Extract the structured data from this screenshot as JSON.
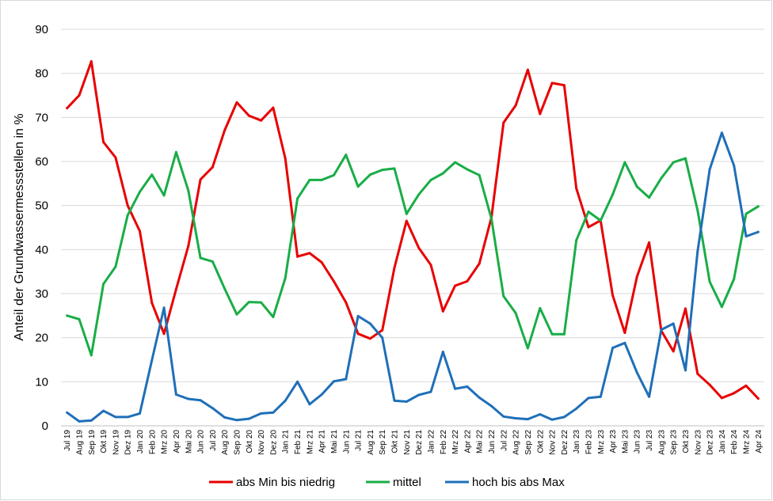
{
  "chart_data": {
    "type": "line",
    "title": "",
    "xlabel": "",
    "ylabel": "Anteil der Grundwassermessstellen  in %",
    "ylim": [
      0,
      90
    ],
    "yticks": [
      0,
      10,
      20,
      30,
      40,
      50,
      60,
      70,
      80,
      90
    ],
    "grid": true,
    "legend_position": "bottom",
    "categories": [
      "Jul 19",
      "Aug 19",
      "Sep 19",
      "Okt 19",
      "Nov 19",
      "Dez 19",
      "Jan 20",
      "Feb 20",
      "Mrz 20",
      "Apr 20",
      "Mai 20",
      "Jun 20",
      "Jul 20",
      "Aug 20",
      "Sep 20",
      "Okt 20",
      "Nov 20",
      "Dez 20",
      "Jan 21",
      "Feb 21",
      "Mrz 21",
      "Apr 21",
      "Mai 21",
      "Jun 21",
      "Jul 21",
      "Aug 21",
      "Sep 21",
      "Okt 21",
      "Nov 21",
      "Dez 21",
      "Jan 22",
      "Feb 22",
      "Mrz 22",
      "Apr 22",
      "Mai 22",
      "Jun 22",
      "Jul 22",
      "Aug 22",
      "Sep 22",
      "Okt 22",
      "Nov 22",
      "Dez 22",
      "Jan 23",
      "Feb 23",
      "Mrz 23",
      "Apr 23",
      "Mai 23",
      "Jun 23",
      "Jul 23",
      "Aug 23",
      "Sep 23",
      "Okt 23",
      "Nov 23",
      "Dez 23",
      "Jan 24",
      "Feb 24",
      "Mrz 24",
      "Apr 24"
    ],
    "series": [
      {
        "name": "abs Min bis niedrig",
        "color": "#e80000",
        "values": [
          72.1,
          75.0,
          82.7,
          64.4,
          60.9,
          50.0,
          44.2,
          27.9,
          20.9,
          31.0,
          40.8,
          55.9,
          58.7,
          67.1,
          73.4,
          70.4,
          69.3,
          72.2,
          60.7,
          38.4,
          39.2,
          37.1,
          32.8,
          28.0,
          20.9,
          19.8,
          21.7,
          35.9,
          46.5,
          40.4,
          36.5,
          26.0,
          31.8,
          32.8,
          36.8,
          47.3,
          68.8,
          72.7,
          80.8,
          70.8,
          77.8,
          77.3,
          53.9,
          45.1,
          46.6,
          29.6,
          21.1,
          33.8,
          41.6,
          21.6,
          16.9,
          26.6,
          11.8,
          9.3,
          6.3,
          7.4,
          9.1,
          6.2
        ]
      },
      {
        "name": "mittel",
        "color": "#19ad47",
        "values": [
          25.0,
          24.2,
          16.0,
          32.2,
          36.1,
          47.8,
          53.1,
          57.0,
          52.3,
          62.1,
          53.4,
          38.1,
          37.3,
          31.1,
          25.3,
          28.1,
          28.0,
          24.7,
          33.5,
          51.6,
          55.8,
          55.8,
          56.9,
          61.5,
          54.3,
          57.0,
          58.1,
          58.4,
          48.1,
          52.5,
          55.8,
          57.3,
          59.8,
          58.2,
          56.9,
          47.0,
          29.4,
          25.6,
          17.6,
          26.7,
          20.8,
          20.8,
          42.1,
          48.6,
          46.6,
          52.5,
          59.8,
          54.3,
          51.8,
          56.2,
          59.8,
          60.7,
          48.9,
          32.7,
          27.0,
          33.3,
          48.1,
          49.8
        ]
      },
      {
        "name": "hoch bis abs Max",
        "color": "#1f6fb8",
        "values": [
          3.0,
          1.0,
          1.2,
          3.4,
          2.0,
          2.0,
          2.8,
          14.9,
          26.8,
          7.1,
          6.1,
          5.8,
          4.0,
          1.9,
          1.3,
          1.6,
          2.8,
          3.0,
          5.7,
          10.0,
          4.9,
          7.1,
          10.1,
          10.6,
          24.9,
          23.2,
          20.0,
          5.7,
          5.5,
          7.0,
          7.7,
          16.8,
          8.4,
          8.9,
          6.4,
          4.5,
          2.1,
          1.7,
          1.5,
          2.6,
          1.4,
          2.0,
          3.9,
          6.3,
          6.6,
          17.7,
          18.8,
          12.1,
          6.6,
          21.8,
          23.2,
          12.6,
          39.6,
          58.2,
          66.5,
          59.1,
          43.0,
          44.0
        ]
      }
    ]
  }
}
